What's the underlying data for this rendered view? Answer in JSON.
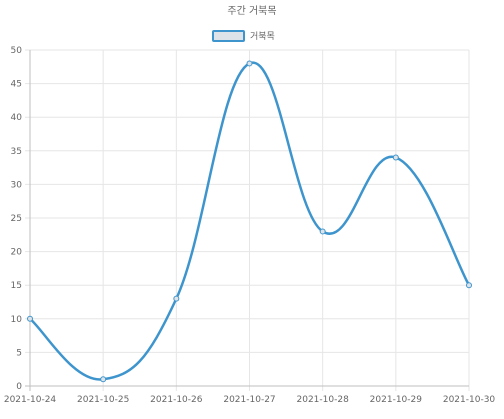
{
  "chart_data": {
    "type": "line",
    "title": "주간 거북목",
    "categories": [
      "2021-10-24",
      "2021-10-25",
      "2021-10-26",
      "2021-10-27",
      "2021-10-28",
      "2021-10-29",
      "2021-10-30"
    ],
    "series": [
      {
        "name": "거북목",
        "values": [
          10,
          1,
          13,
          48,
          23,
          34,
          15
        ],
        "color": "#3e95cd",
        "fill": "#dde3e8"
      }
    ],
    "ylim": [
      0,
      50
    ],
    "yticks": [
      0,
      5,
      10,
      15,
      20,
      25,
      30,
      35,
      40,
      45,
      50
    ],
    "grid": true,
    "legend": "top-center",
    "colors": {
      "grid": "#e6e6e6",
      "axis": "#bfbfbf",
      "text": "#666666"
    }
  }
}
